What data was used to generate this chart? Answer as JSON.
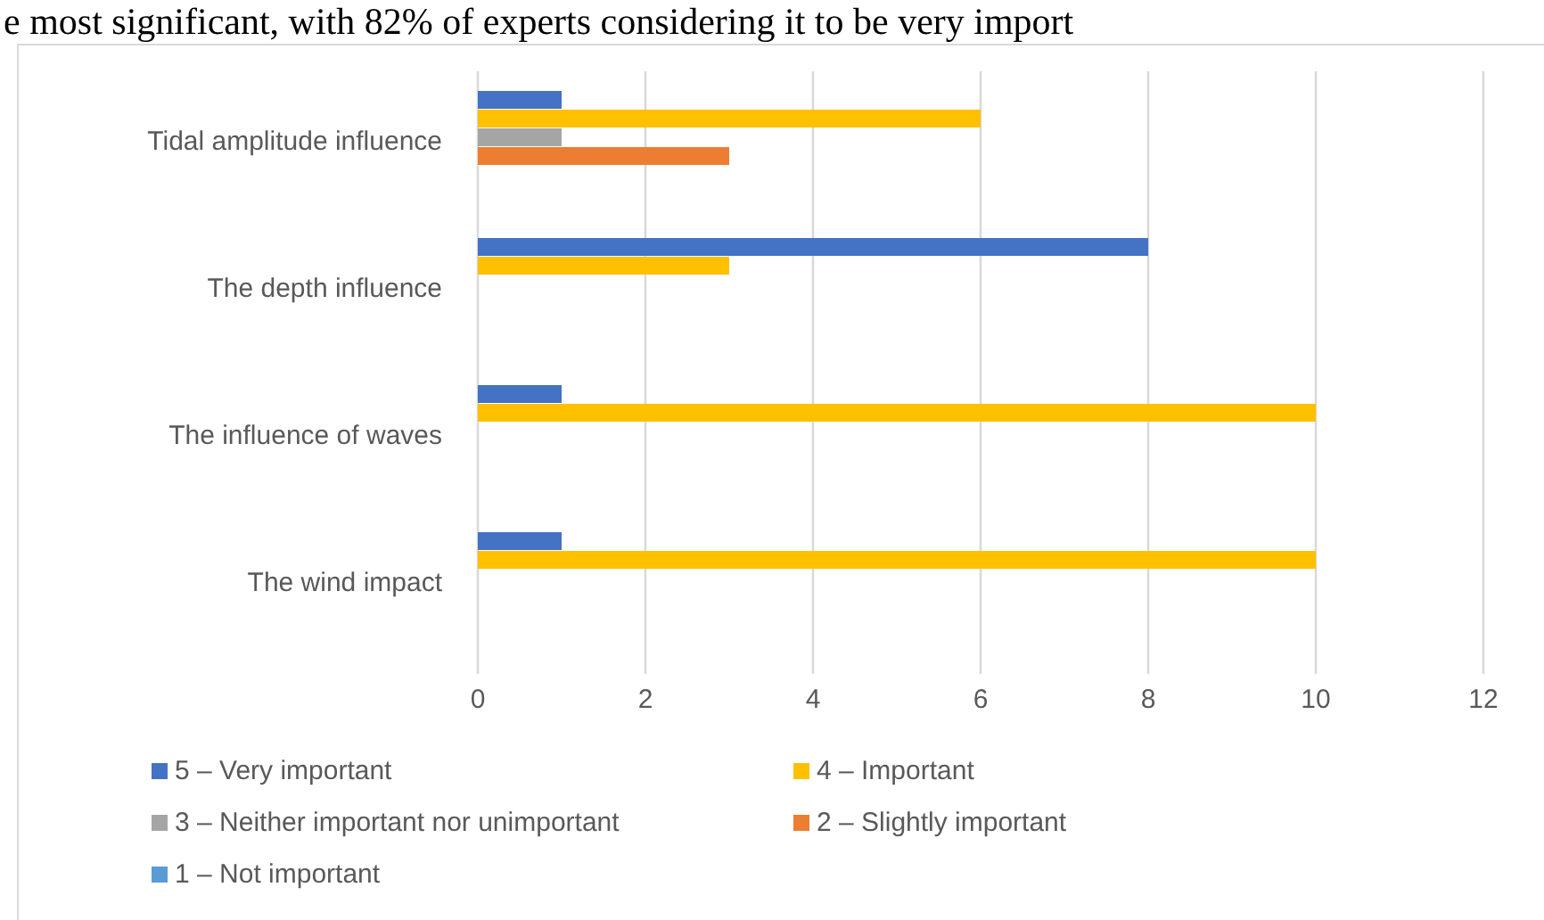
{
  "chart_data": {
    "type": "bar",
    "orientation": "horizontal",
    "annotations": [
      "e most significant, with 82% of experts considering it to be very import"
    ],
    "categories": [
      "Tidal amplitude influence",
      "The depth influence",
      "The influence of waves",
      "The wind impact"
    ],
    "series": [
      {
        "name": "5 – Very important",
        "color": "#4472c4",
        "values": [
          1,
          8,
          1,
          1
        ]
      },
      {
        "name": "4 – Important",
        "color": "#ffc000",
        "values": [
          6,
          3,
          10,
          10
        ]
      },
      {
        "name": "3 – Neither important nor unimportant",
        "color": "#a5a5a5",
        "values": [
          1,
          0,
          0,
          0
        ]
      },
      {
        "name": "2 – Slightly important",
        "color": "#ed7d31",
        "values": [
          3,
          0,
          0,
          0
        ]
      },
      {
        "name": "1 – Not important",
        "color": "#5b9bd5",
        "values": [
          0,
          0,
          0,
          0
        ]
      }
    ],
    "xlim": [
      0,
      12
    ],
    "xticks": [
      0,
      2,
      4,
      6,
      8,
      10,
      12
    ],
    "grid": "x",
    "legend": "bottom"
  }
}
